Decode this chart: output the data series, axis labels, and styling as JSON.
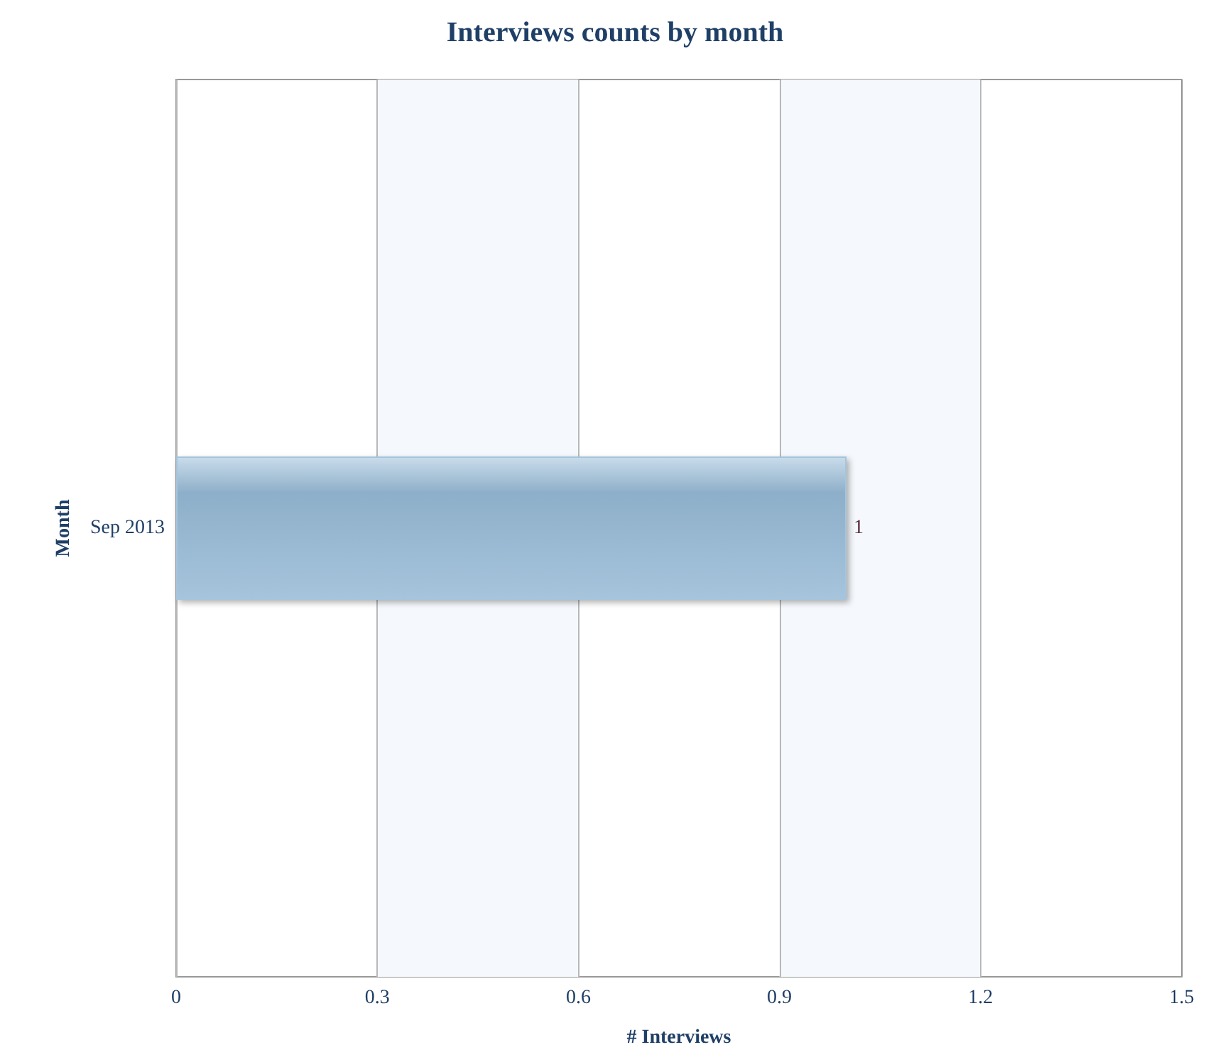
{
  "chart_data": {
    "type": "bar",
    "orientation": "horizontal",
    "title": "Interviews counts by month",
    "xlabel": "# Interviews",
    "ylabel": "Month",
    "categories": [
      "Sep 2013"
    ],
    "values": [
      1
    ],
    "color": "#a6c4dc",
    "data_labels": true,
    "xlim": [
      0,
      1.5
    ],
    "xticks": [
      0,
      0.3,
      0.6,
      0.9,
      1.2,
      1.5
    ],
    "grid": "x"
  }
}
